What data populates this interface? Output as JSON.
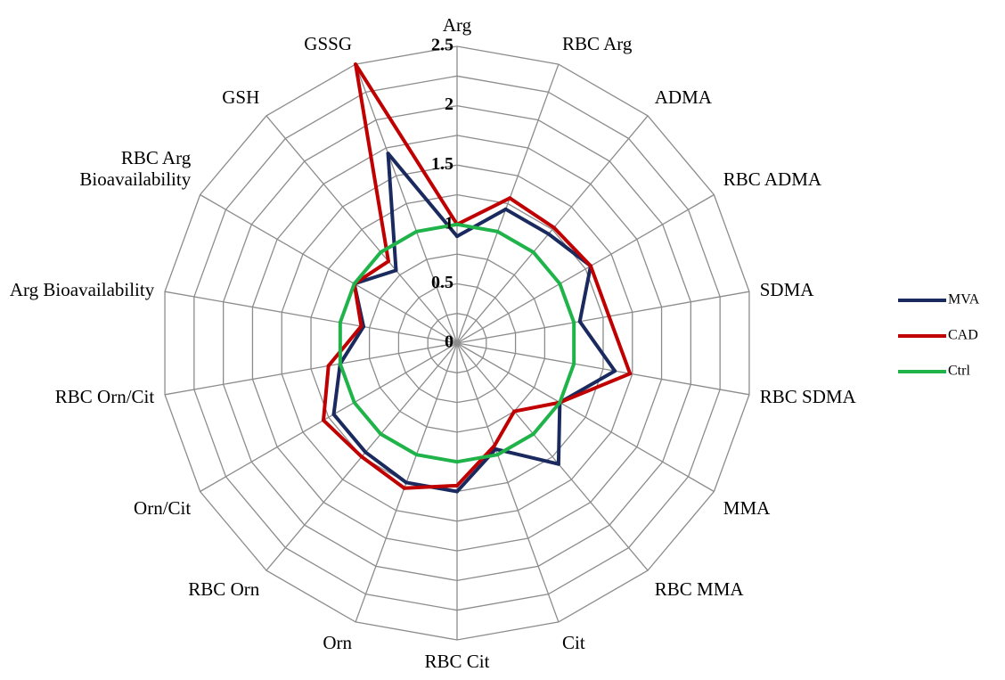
{
  "chart_data": {
    "type": "radar",
    "categories": [
      "Arg",
      "RBC Arg",
      "ADMA",
      "RBC ADMA",
      "SDMA",
      "RBC SDMA",
      "MMA",
      "RBC MMA",
      "Cit",
      "RBC Cit",
      "Orn",
      "RBC Orn",
      "Orn/Cit",
      "RBC Orn/Cit",
      "Arg Bioavailability",
      "RBC Arg Bioavailability",
      "GSH",
      "GSSG"
    ],
    "series": [
      {
        "name": "MVA",
        "color": "#1b2a5e",
        "values": [
          0.9,
          1.2,
          1.2,
          1.3,
          1.05,
          1.35,
          1.0,
          1.33,
          0.95,
          1.25,
          1.25,
          1.2,
          1.2,
          1.0,
          0.8,
          1.0,
          0.8,
          1.7
        ]
      },
      {
        "name": "CAD",
        "color": "#c00000",
        "values": [
          1.0,
          1.3,
          1.27,
          1.3,
          1.3,
          1.48,
          1.0,
          0.75,
          0.92,
          1.2,
          1.3,
          1.25,
          1.3,
          1.1,
          0.82,
          1.0,
          0.9,
          2.5
        ]
      },
      {
        "name": "Ctrl",
        "color": "#1fb34a",
        "values": [
          1,
          1,
          1,
          1,
          1,
          1,
          1,
          1,
          1,
          1,
          1,
          1,
          1,
          1,
          1,
          1,
          1,
          1
        ]
      }
    ],
    "ylim": [
      0,
      2.5
    ],
    "yticks": [
      0,
      0.5,
      1,
      1.5,
      2,
      2.5
    ],
    "grid": true,
    "legend": "right"
  }
}
